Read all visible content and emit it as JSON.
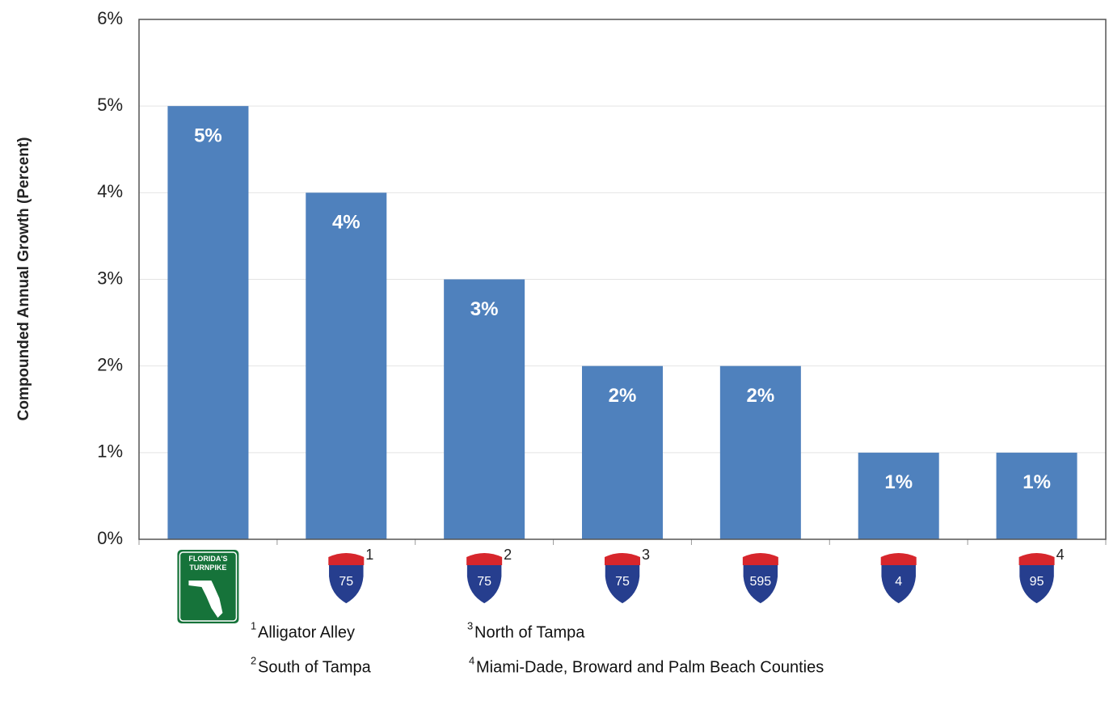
{
  "chart_data": {
    "type": "bar",
    "y_label": "Compounded Annual Growth (Percent)",
    "categories": [
      "FLORIDA'S TURNPIKE",
      "75",
      "75",
      "75",
      "595",
      "4",
      "95"
    ],
    "category_markers": [
      null,
      "1",
      "2",
      "3",
      null,
      null,
      "4"
    ],
    "values": [
      5,
      4,
      3,
      2,
      2,
      1,
      1
    ],
    "value_labels": [
      "5%",
      "4%",
      "3%",
      "2%",
      "2%",
      "1%",
      "1%"
    ],
    "color": "#4f81bd",
    "ylim": [
      0,
      6
    ],
    "yticks": [
      {
        "value": 0,
        "label": "0%"
      },
      {
        "value": 1,
        "label": "1%"
      },
      {
        "value": 2,
        "label": "2%"
      },
      {
        "value": 3,
        "label": "3%"
      },
      {
        "value": 4,
        "label": "4%"
      },
      {
        "value": 5,
        "label": "5%"
      },
      {
        "value": 6,
        "label": "6%"
      }
    ],
    "grid": true,
    "footnotes": [
      {
        "marker": "1",
        "text": "Alligator Alley"
      },
      {
        "marker": "2",
        "text": "South of Tampa"
      },
      {
        "marker": "3",
        "text": "North of Tampa"
      },
      {
        "marker": "4",
        "text": "Miami-Dade, Broward and Palm Beach Counties"
      }
    ]
  }
}
